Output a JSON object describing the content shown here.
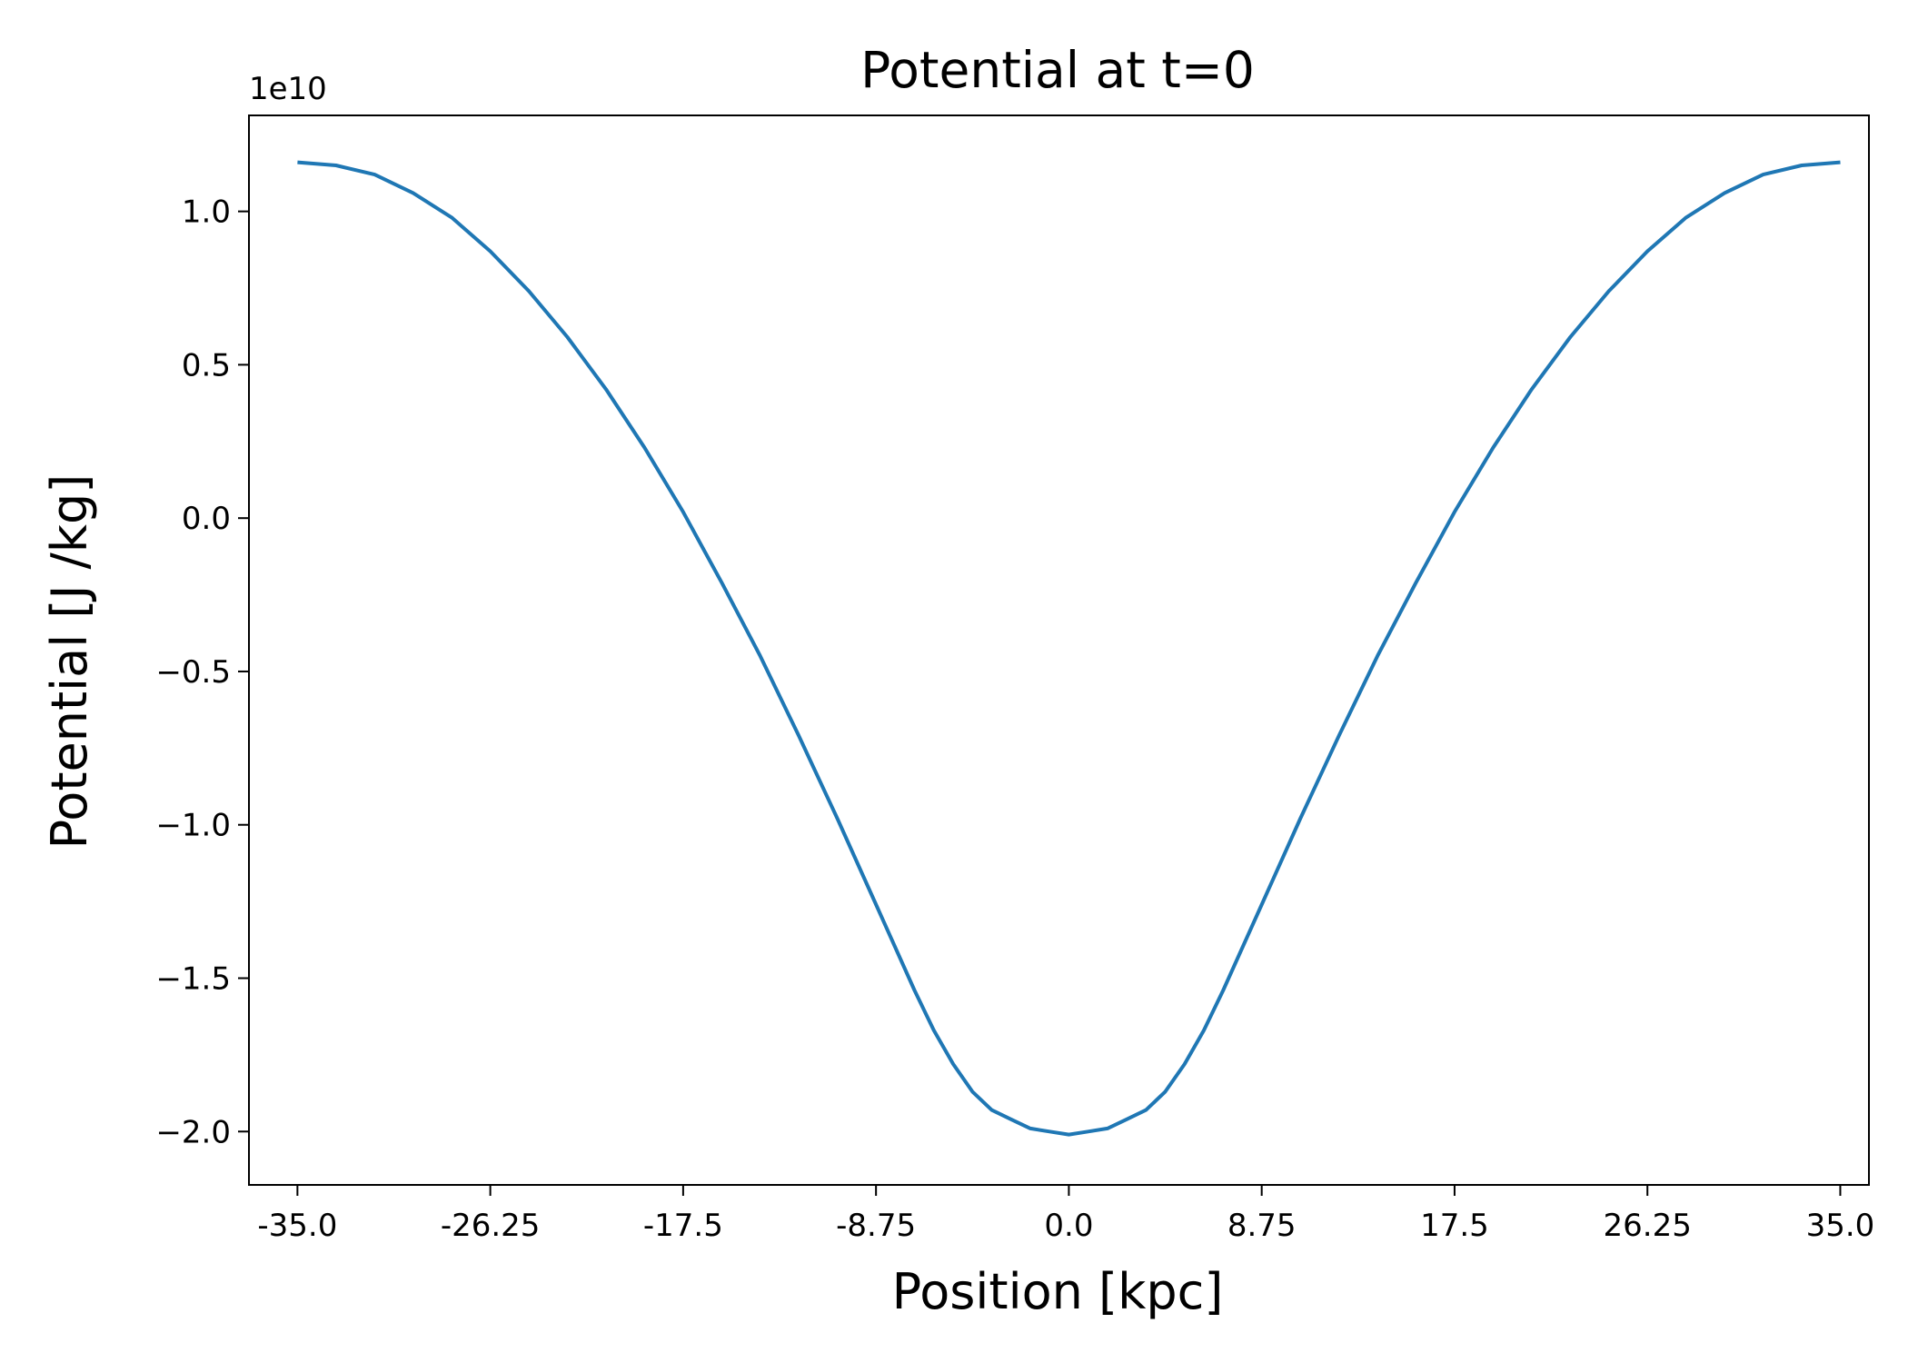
{
  "chart_data": {
    "type": "line",
    "title": "Potential at t=0",
    "xlabel": "Position [kpc]",
    "ylabel": "Potential [J /kg]",
    "y_offset_label": "1e10",
    "y_scale_factor": 10000000000.0,
    "xlim": [
      -37.2,
      36.3
    ],
    "ylim": [
      -2.174,
      1.313
    ],
    "x_ticks": [
      -35.0,
      -26.25,
      -17.5,
      -8.75,
      0.0,
      8.75,
      17.5,
      26.25,
      35.0
    ],
    "x_tick_labels": [
      "-35.0",
      "-26.25",
      "-17.5",
      "-8.75",
      "0.0",
      "8.75",
      "17.5",
      "26.25",
      "35.0"
    ],
    "y_ticks": [
      1.0,
      0.5,
      0.0,
      -0.5,
      -1.0,
      -1.5,
      -2.0
    ],
    "y_tick_labels": [
      "1.0",
      "0.5",
      "0.0",
      "−0.5",
      "−1.0",
      "−1.5",
      "−2.0"
    ],
    "grid": false,
    "line_color": "#1f77b4",
    "series": [
      {
        "x": [
          -35.0,
          -33.25,
          -31.5,
          -29.75,
          -28.0,
          -26.25,
          -24.5,
          -22.75,
          -21.0,
          -19.25,
          -17.5,
          -15.75,
          -14.0,
          -12.25,
          -10.5,
          -8.75,
          -7.0,
          -6.125,
          -5.25,
          -4.375,
          -3.5,
          -2.625,
          -1.75,
          -0.875,
          0.0,
          0.875,
          1.75,
          2.625,
          3.5,
          4.375,
          5.25,
          6.125,
          7.0,
          8.75,
          10.5,
          12.25,
          14.0,
          15.75,
          17.5,
          19.25,
          21.0,
          22.75,
          24.5,
          26.25,
          28.0,
          29.75,
          31.5,
          33.25,
          35.0
        ],
        "y": [
          1.16,
          1.15,
          1.12,
          1.06,
          0.98,
          0.87,
          0.74,
          0.59,
          0.42,
          0.23,
          0.02,
          -0.21,
          -0.45,
          -0.71,
          -0.98,
          -1.26,
          -1.54,
          -1.67,
          -1.78,
          -1.87,
          -1.93,
          -1.96,
          -1.99,
          -2.0,
          -2.01,
          -2.0,
          -1.99,
          -1.96,
          -1.93,
          -1.87,
          -1.78,
          -1.67,
          -1.54,
          -1.26,
          -0.98,
          -0.71,
          -0.45,
          -0.21,
          0.02,
          0.23,
          0.42,
          0.59,
          0.74,
          0.87,
          0.98,
          1.06,
          1.12,
          1.15,
          1.16
        ]
      }
    ]
  }
}
